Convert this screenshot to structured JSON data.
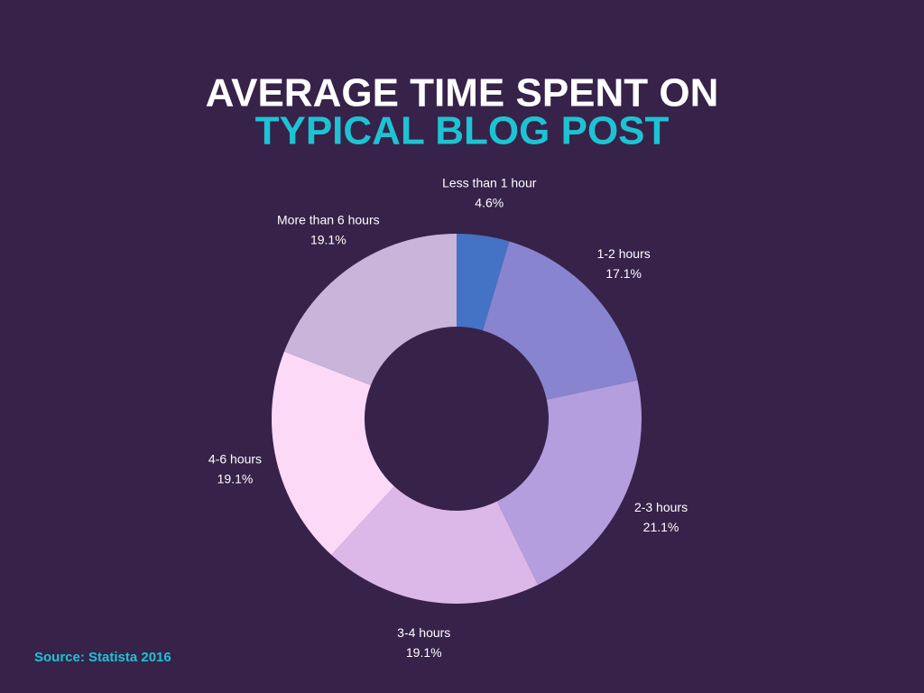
{
  "chart_data": {
    "type": "donut",
    "title": [
      "AVERAGE TIME SPENT ON",
      "TYPICAL BLOG POST"
    ],
    "title_colors": [
      "#ffffff",
      "#1ec3d3"
    ],
    "categories": [
      "Less than 1 hour",
      "1-2 hours",
      "2-3 hours",
      "3-4 hours",
      "4-6 hours",
      "More than 6 hours"
    ],
    "values": [
      4.6,
      17.1,
      21.1,
      19.1,
      19.1,
      19.1
    ],
    "value_labels": [
      "4.6%",
      "17.1%",
      "21.1%",
      "19.1%",
      "19.1%",
      "19.1%"
    ],
    "colors": [
      "#4472c4",
      "#8884cf",
      "#b49ede",
      "#dbb8e8",
      "#fdd9f8",
      "#c9b4da"
    ],
    "source": "Source: Statista 2016"
  }
}
